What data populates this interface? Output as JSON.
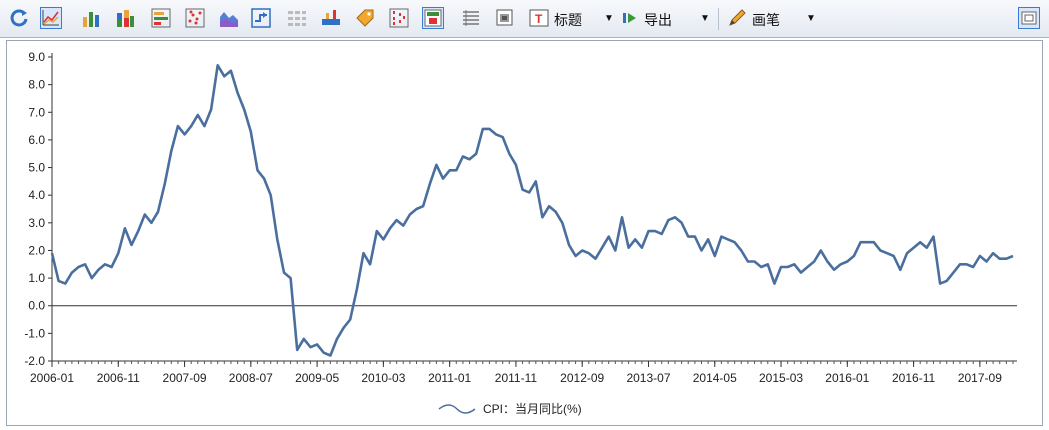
{
  "toolbar": {
    "title_label": "标题",
    "export_label": "导出",
    "pen_label": "画笔",
    "icons": [
      "refresh-icon",
      "line-chart-icon",
      "bar-chart-icon",
      "stacked-bar-icon",
      "horizontal-bar-icon",
      "scatter-icon",
      "area-chart-icon",
      "step-chart-icon",
      "table-grid-icon",
      "axis-tool-icon",
      "tag-icon",
      "stats-icon",
      "grid-toggle-icon",
      "list-icon",
      "data-view-icon",
      "title-icon",
      "export-icon",
      "pen-icon",
      "fit-screen-icon"
    ],
    "accent": "#2f5b9a"
  },
  "chart_data": {
    "type": "line",
    "title": "",
    "xlabel": "",
    "ylabel": "",
    "ylim": [
      -2.0,
      9.0
    ],
    "yticks": [
      "9.0",
      "8.0",
      "7.0",
      "6.0",
      "5.0",
      "4.0",
      "3.0",
      "2.0",
      "1.0",
      "0.0",
      "-1.0",
      "-2.0"
    ],
    "xticks": [
      "2006-01",
      "2006-11",
      "2007-09",
      "2008-07",
      "2009-05",
      "2010-03",
      "2011-01",
      "2011-11",
      "2012-09",
      "2013-07",
      "2014-05",
      "2015-03",
      "2016-01",
      "2016-11",
      "2017-09"
    ],
    "legend": {
      "position": "bottom-center"
    },
    "grid": false,
    "series": [
      {
        "name": "CPI：当月同比(%)",
        "color": "#4a6f9e",
        "x_start": "2006-01",
        "x_end": "2017-12",
        "frequency": "monthly",
        "values": [
          1.9,
          0.9,
          0.8,
          1.2,
          1.4,
          1.5,
          1.0,
          1.3,
          1.5,
          1.4,
          1.9,
          2.8,
          2.2,
          2.7,
          3.3,
          3.0,
          3.4,
          4.4,
          5.6,
          6.5,
          6.2,
          6.5,
          6.9,
          6.5,
          7.1,
          8.7,
          8.3,
          8.5,
          7.7,
          7.1,
          6.3,
          4.9,
          4.6,
          4.0,
          2.4,
          1.2,
          1.0,
          -1.6,
          -1.2,
          -1.5,
          -1.4,
          -1.7,
          -1.8,
          -1.2,
          -0.8,
          -0.5,
          0.6,
          1.9,
          1.5,
          2.7,
          2.4,
          2.8,
          3.1,
          2.9,
          3.3,
          3.5,
          3.6,
          4.4,
          5.1,
          4.6,
          4.9,
          4.9,
          5.4,
          5.3,
          5.5,
          6.4,
          6.4,
          6.2,
          6.1,
          5.5,
          5.1,
          4.2,
          4.1,
          4.5,
          3.2,
          3.6,
          3.4,
          3.0,
          2.2,
          1.8,
          2.0,
          1.9,
          1.7,
          2.1,
          2.5,
          2.0,
          3.2,
          2.1,
          2.4,
          2.1,
          2.7,
          2.7,
          2.6,
          3.1,
          3.2,
          3.0,
          2.5,
          2.5,
          2.0,
          2.4,
          1.8,
          2.5,
          2.4,
          2.3,
          2.0,
          1.6,
          1.6,
          1.4,
          1.5,
          0.8,
          1.4,
          1.4,
          1.5,
          1.2,
          1.4,
          1.6,
          2.0,
          1.6,
          1.3,
          1.5,
          1.6,
          1.8,
          2.3,
          2.3,
          2.3,
          2.0,
          1.9,
          1.8,
          1.3,
          1.9,
          2.1,
          2.3,
          2.1,
          2.5,
          0.8,
          0.9,
          1.2,
          1.5,
          1.5,
          1.4,
          1.8,
          1.6,
          1.9,
          1.7,
          1.7,
          1.8
        ]
      }
    ]
  }
}
